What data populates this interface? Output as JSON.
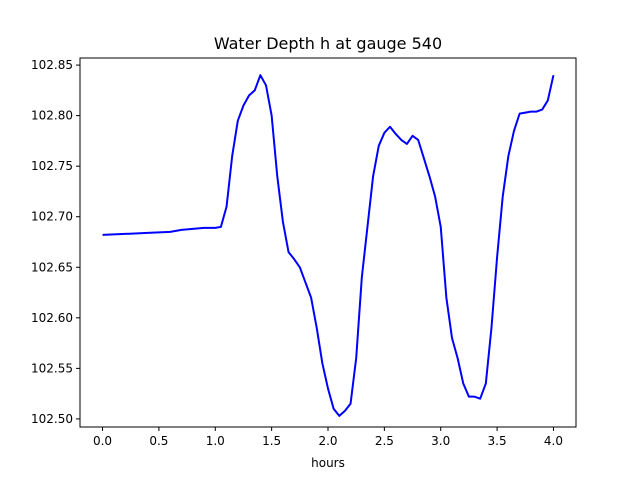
{
  "chart_data": {
    "type": "line",
    "title": "Water Depth h at gauge 540",
    "xlabel": "hours",
    "ylabel": "",
    "xlim": [
      -0.2,
      4.2
    ],
    "ylim": [
      102.492,
      102.857
    ],
    "xticks": [
      0.0,
      0.5,
      1.0,
      1.5,
      2.0,
      2.5,
      3.0,
      3.5,
      4.0
    ],
    "xtick_labels": [
      "0.0",
      "0.5",
      "1.0",
      "1.5",
      "2.0",
      "2.5",
      "3.0",
      "3.5",
      "4.0"
    ],
    "yticks": [
      102.5,
      102.55,
      102.6,
      102.65,
      102.7,
      102.75,
      102.8,
      102.85
    ],
    "ytick_labels": [
      "102.50",
      "102.55",
      "102.60",
      "102.65",
      "102.70",
      "102.75",
      "102.80",
      "102.85"
    ],
    "grid": false,
    "series": [
      {
        "color": "#0000ff",
        "x": [
          0.0,
          0.2,
          0.4,
          0.6,
          0.7,
          0.8,
          0.9,
          1.0,
          1.05,
          1.1,
          1.15,
          1.2,
          1.25,
          1.3,
          1.35,
          1.4,
          1.45,
          1.5,
          1.55,
          1.6,
          1.65,
          1.7,
          1.75,
          1.8,
          1.85,
          1.9,
          1.95,
          2.0,
          2.05,
          2.1,
          2.15,
          2.2,
          2.25,
          2.3,
          2.35,
          2.4,
          2.45,
          2.5,
          2.55,
          2.6,
          2.65,
          2.7,
          2.75,
          2.8,
          2.85,
          2.9,
          2.95,
          3.0,
          3.05,
          3.1,
          3.15,
          3.2,
          3.25,
          3.3,
          3.35,
          3.4,
          3.45,
          3.5,
          3.55,
          3.6,
          3.65,
          3.7,
          3.75,
          3.8,
          3.85,
          3.9,
          3.95,
          4.0
        ],
        "y": [
          102.682,
          102.683,
          102.684,
          102.685,
          102.687,
          102.688,
          102.689,
          102.689,
          102.69,
          102.71,
          102.76,
          102.795,
          102.81,
          102.82,
          102.825,
          102.84,
          102.83,
          102.8,
          102.74,
          102.695,
          102.665,
          102.658,
          102.65,
          102.635,
          102.62,
          102.59,
          102.555,
          102.53,
          102.51,
          102.503,
          102.508,
          102.515,
          102.56,
          102.64,
          102.69,
          102.74,
          102.77,
          102.783,
          102.789,
          102.782,
          102.776,
          102.772,
          102.78,
          102.776,
          102.758,
          102.74,
          102.72,
          102.69,
          102.62,
          102.58,
          102.56,
          102.535,
          102.522,
          102.522,
          102.52,
          102.535,
          102.59,
          102.66,
          102.72,
          102.76,
          102.785,
          102.802,
          102.803,
          102.804,
          102.804,
          102.806,
          102.815,
          102.84
        ]
      }
    ]
  }
}
